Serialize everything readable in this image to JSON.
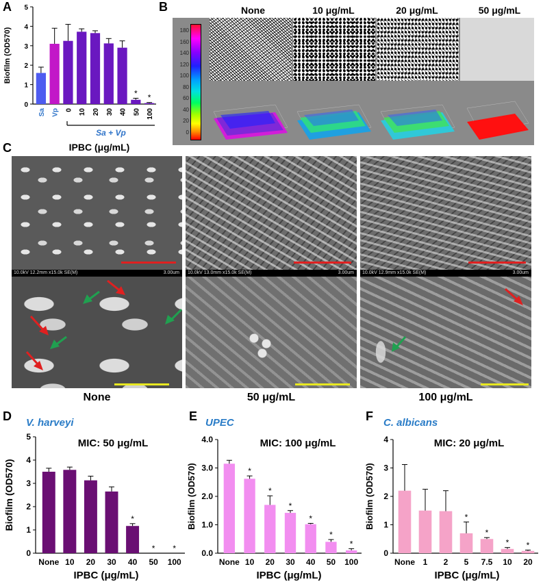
{
  "panel_letters": {
    "A": "A",
    "B": "B",
    "C": "C",
    "D": "D",
    "E": "E",
    "F": "F"
  },
  "panelB": {
    "headers": [
      "None",
      "10 μg/mL",
      "20 μg/mL",
      "50 μg/mL"
    ],
    "colorbar_ticks": [
      "180",
      "160",
      "140",
      "120",
      "100",
      "80",
      "60",
      "40",
      "20",
      "0"
    ]
  },
  "panelC": {
    "captions": [
      "None",
      "50 μg/mL",
      "100 μg/mL"
    ],
    "sem_info": [
      {
        "left": "10.0kV 12.2mm x15.0k SE(M)",
        "right": "3.00um"
      },
      {
        "left": "10.0kV 13.0mm x15.0k SE(M)",
        "right": "3.00um"
      },
      {
        "left": "10.0kV 12.9mm x15.0k SE(M)",
        "right": "3.00um"
      }
    ]
  },
  "chart_data": [
    {
      "id": "A",
      "type": "bar",
      "ylabel": "Biofilm (OD570)",
      "ylim": [
        0,
        5
      ],
      "yticks": [
        "0",
        "1",
        "2",
        "3",
        "4",
        "5"
      ],
      "xlabel": "IPBC (μg/mL)",
      "group_label": "Sa + Vp",
      "categories": [
        "Sa",
        "Vp",
        "0",
        "10",
        "20",
        "30",
        "40",
        "50",
        "100"
      ],
      "values": [
        1.6,
        3.1,
        3.25,
        3.72,
        3.65,
        3.12,
        2.9,
        0.22,
        0.05
      ],
      "errors": [
        0.3,
        0.8,
        0.85,
        0.15,
        0.12,
        0.25,
        0.35,
        0.08,
        0.03
      ],
      "significant": [
        false,
        false,
        false,
        false,
        false,
        false,
        false,
        true,
        true
      ],
      "colors": [
        "#4e5cf0",
        "#c218c8",
        "#6a18c0",
        "#6a18c0",
        "#6a18c0",
        "#6a18c0",
        "#6a18c0",
        "#6a18c0",
        "#6a18c0"
      ],
      "tick_colors": [
        "#2f74c9",
        "#2f74c9",
        "#000000",
        "#000000",
        "#000000",
        "#000000",
        "#000000",
        "#000000",
        "#000000"
      ]
    },
    {
      "id": "D",
      "type": "bar",
      "title": "V. harveyi",
      "annotation": "MIC: 50 μg/mL",
      "ylabel": "Biofilm (OD570)",
      "ylim": [
        0,
        5
      ],
      "yticks": [
        "0",
        "1",
        "2",
        "3",
        "4",
        "5"
      ],
      "xlabel": "IPBC (μg/mL)",
      "categories": [
        "None",
        "10",
        "20",
        "30",
        "40",
        "50",
        "100"
      ],
      "values": [
        3.5,
        3.58,
        3.13,
        2.65,
        1.17,
        0,
        0
      ],
      "errors": [
        0.15,
        0.12,
        0.18,
        0.2,
        0.1,
        0,
        0
      ],
      "significant": [
        false,
        false,
        false,
        false,
        true,
        true,
        true
      ],
      "color": "#6a0f73"
    },
    {
      "id": "E",
      "type": "bar",
      "title": "UPEC",
      "annotation": "MIC: 100 μg/mL",
      "ylabel": "Biofilm (OD570)",
      "ylim": [
        0,
        4
      ],
      "yticks": [
        "0.0",
        "1.0",
        "2.0",
        "3.0",
        "4.0"
      ],
      "xlabel": "IPBC (μg/mL)",
      "categories": [
        "None",
        "10",
        "20",
        "30",
        "40",
        "50",
        "100"
      ],
      "values": [
        3.15,
        2.62,
        1.7,
        1.42,
        1.02,
        0.4,
        0.1
      ],
      "errors": [
        0.12,
        0.1,
        0.32,
        0.08,
        0.03,
        0.08,
        0.06
      ],
      "significant": [
        false,
        true,
        true,
        true,
        true,
        true,
        true
      ],
      "color": "#f28ef0"
    },
    {
      "id": "F",
      "type": "bar",
      "title": "C. albicans",
      "annotation": "MIC: 20 μg/mL",
      "ylabel": "Biofilm (OD570)",
      "ylim": [
        0,
        4
      ],
      "yticks": [
        "0",
        "1",
        "2",
        "3",
        "4"
      ],
      "xlabel": "IPBC (μg/mL)",
      "categories": [
        "None",
        "1",
        "2",
        "5",
        "7.5",
        "10",
        "20"
      ],
      "values": [
        2.2,
        1.5,
        1.48,
        0.7,
        0.5,
        0.15,
        0.08
      ],
      "errors": [
        0.92,
        0.75,
        0.72,
        0.4,
        0.05,
        0.05,
        0.03
      ],
      "significant": [
        false,
        false,
        false,
        true,
        true,
        true,
        true
      ],
      "color": "#f5a3c8"
    }
  ]
}
